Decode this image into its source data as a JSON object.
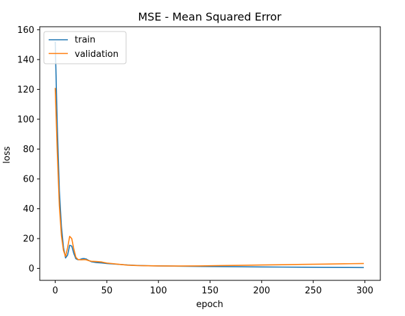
{
  "chart_data": {
    "type": "line",
    "title": "MSE - Mean Squared Error",
    "xlabel": "epoch",
    "ylabel": "loss",
    "xlim": [
      -15,
      315
    ],
    "ylim": [
      -8,
      162
    ],
    "xticks": [
      0,
      50,
      100,
      150,
      200,
      250,
      300
    ],
    "yticks": [
      0,
      20,
      40,
      60,
      80,
      100,
      120,
      140,
      160
    ],
    "grid": false,
    "legend_position": "top-left",
    "series": [
      {
        "name": "train",
        "color": "#1f77b4",
        "points": [
          [
            0,
            152
          ],
          [
            2,
            95
          ],
          [
            4,
            52
          ],
          [
            6,
            28
          ],
          [
            8,
            14
          ],
          [
            10,
            7
          ],
          [
            12,
            9
          ],
          [
            14,
            15.5
          ],
          [
            16,
            15
          ],
          [
            18,
            10
          ],
          [
            20,
            6.5
          ],
          [
            22,
            5.8
          ],
          [
            24,
            6
          ],
          [
            26,
            6.5
          ],
          [
            28,
            6.6
          ],
          [
            30,
            6.3
          ],
          [
            32,
            5.5
          ],
          [
            35,
            4.5
          ],
          [
            40,
            3.9
          ],
          [
            45,
            3.7
          ],
          [
            50,
            3.3
          ],
          [
            60,
            2.8
          ],
          [
            70,
            2.3
          ],
          [
            80,
            2
          ],
          [
            90,
            1.8
          ],
          [
            100,
            1.7
          ],
          [
            120,
            1.5
          ],
          [
            140,
            1.3
          ],
          [
            160,
            1.2
          ],
          [
            180,
            1.1
          ],
          [
            200,
            1
          ],
          [
            220,
            0.9
          ],
          [
            240,
            0.8
          ],
          [
            260,
            0.7
          ],
          [
            280,
            0.65
          ],
          [
            299,
            0.6
          ]
        ]
      },
      {
        "name": "validation",
        "color": "#ff7f0e",
        "points": [
          [
            0,
            121
          ],
          [
            2,
            78
          ],
          [
            4,
            42
          ],
          [
            6,
            22
          ],
          [
            8,
            12
          ],
          [
            10,
            8
          ],
          [
            12,
            14
          ],
          [
            14,
            21.5
          ],
          [
            16,
            20
          ],
          [
            18,
            13
          ],
          [
            20,
            7.5
          ],
          [
            22,
            6
          ],
          [
            24,
            5.8
          ],
          [
            26,
            5.8
          ],
          [
            28,
            5.9
          ],
          [
            30,
            5.8
          ],
          [
            32,
            5.3
          ],
          [
            35,
            4.8
          ],
          [
            40,
            4.6
          ],
          [
            45,
            4.3
          ],
          [
            50,
            3.6
          ],
          [
            60,
            2.9
          ],
          [
            70,
            2.2
          ],
          [
            80,
            1.9
          ],
          [
            90,
            1.8
          ],
          [
            100,
            1.7
          ],
          [
            120,
            1.6
          ],
          [
            140,
            1.7
          ],
          [
            160,
            1.9
          ],
          [
            180,
            2.1
          ],
          [
            200,
            2.3
          ],
          [
            220,
            2.5
          ],
          [
            240,
            2.7
          ],
          [
            260,
            2.9
          ],
          [
            280,
            3.1
          ],
          [
            299,
            3.3
          ]
        ]
      }
    ]
  }
}
